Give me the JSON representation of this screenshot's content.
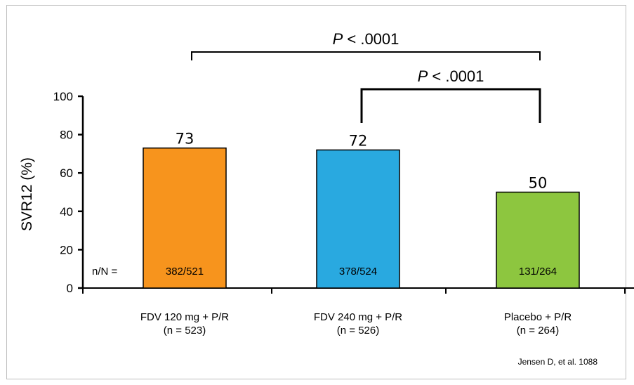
{
  "chart_data": {
    "type": "bar",
    "title": "",
    "ylabel": "SVR12 (%)",
    "xlabel": "",
    "ylim": [
      0,
      100
    ],
    "yticks": [
      0,
      20,
      40,
      60,
      80,
      100
    ],
    "categories": [
      {
        "line1": "FDV 120 mg + P/R",
        "line2": "(n = 523)"
      },
      {
        "line1": "FDV 240 mg + P/R",
        "line2": "(n = 526)"
      },
      {
        "line1": "Placebo + P/R",
        "line2": "(n = 264)"
      }
    ],
    "values": [
      73,
      72,
      50
    ],
    "value_labels": [
      "73",
      "72",
      "50"
    ],
    "nN_prefix": "n/N =",
    "nN": [
      "382/521",
      "378/524",
      "131/264"
    ],
    "colors": [
      "#f7941d",
      "#29a9e0",
      "#8dc63f"
    ],
    "comparisons": [
      {
        "from": 0,
        "to": 2,
        "label_italic": "P",
        "label_rest": " < .0001"
      },
      {
        "from": 1,
        "to": 2,
        "label_italic": "P",
        "label_rest": " < .0001"
      }
    ],
    "grid": false
  },
  "citation": "Jensen D, et al. 1088"
}
